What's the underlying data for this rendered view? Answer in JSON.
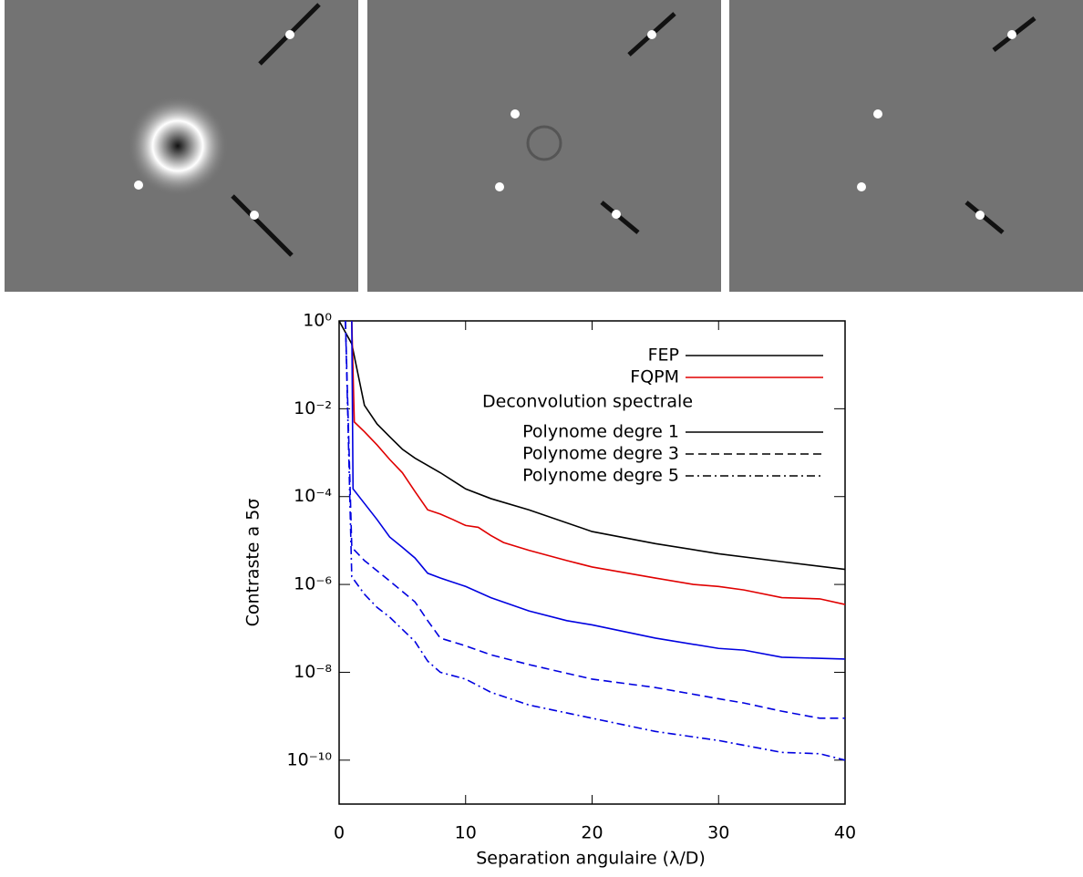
{
  "chart_data": {
    "type": "line",
    "y_label": "Contraste a 5σ",
    "x_label": "Separation angulaire (λ/D)",
    "xlim": [
      0,
      40
    ],
    "xticks": [
      0,
      10,
      20,
      30,
      40
    ],
    "ylim": [
      1e-11,
      1
    ],
    "log_y": true,
    "yticks": [
      {
        "value": 1,
        "label": "10⁰"
      },
      {
        "value": 0.01,
        "label": "10⁻²"
      },
      {
        "value": 0.0001,
        "label": "10⁻⁴"
      },
      {
        "value": 1e-06,
        "label": "10⁻⁶"
      },
      {
        "value": 1e-08,
        "label": "10⁻⁸"
      },
      {
        "value": 1e-10,
        "label": "10⁻¹⁰"
      }
    ],
    "legend_position": "upper right",
    "legend_heading": "Deconvolution spectrale",
    "series": [
      {
        "name": "FEP",
        "color": "#000000",
        "legend_color": "#000000",
        "dash": "solid",
        "x": [
          0,
          1,
          2,
          3,
          4,
          5,
          6,
          8,
          10,
          12,
          15,
          20,
          25,
          30,
          35,
          40
        ],
        "values": [
          1,
          0.3,
          0.012,
          0.0045,
          0.0023,
          0.0012,
          0.00075,
          0.00035,
          0.00015,
          9e-05,
          5e-05,
          1.6e-05,
          8.5e-06,
          5e-06,
          3.3e-06,
          2.2e-06
        ]
      },
      {
        "name": "FQPM",
        "color": "#e00000",
        "legend_color": "#e00000",
        "dash": "solid",
        "x": [
          1,
          1.2,
          2,
          3,
          4,
          5,
          6,
          7,
          8,
          9,
          10,
          11,
          12,
          13,
          15,
          18,
          20,
          25,
          28,
          30,
          32,
          35,
          38,
          40
        ],
        "values": [
          1,
          0.005,
          0.003,
          0.0015,
          0.0007,
          0.00035,
          0.00013,
          5e-05,
          4e-05,
          3e-05,
          2.2e-05,
          2e-05,
          1.3e-05,
          9e-06,
          6e-06,
          3.5e-06,
          2.5e-06,
          1.4e-06,
          1e-06,
          9e-07,
          7.5e-07,
          5e-07,
          4.7e-07,
          3.5e-07
        ]
      },
      {
        "name": "Polynome degre 1",
        "color": "#0000e0",
        "legend_color": "#000000",
        "dash": "solid",
        "x": [
          1,
          1.1,
          2,
          3,
          4,
          5,
          6,
          7,
          8,
          10,
          12,
          15,
          18,
          20,
          25,
          30,
          32,
          35,
          40
        ],
        "values": [
          1,
          0.00015,
          7e-05,
          3e-05,
          1.2e-05,
          7e-06,
          4e-06,
          1.8e-06,
          1.4e-06,
          9e-07,
          5e-07,
          2.5e-07,
          1.5e-07,
          1.2e-07,
          6e-08,
          3.5e-08,
          3.2e-08,
          2.2e-08,
          2e-08
        ]
      },
      {
        "name": "Polynome degre 3",
        "color": "#0000e0",
        "legend_color": "#000000",
        "dash": "dashed",
        "x": [
          0.5,
          1,
          2,
          4,
          6,
          7,
          8,
          10,
          12,
          15,
          20,
          25,
          30,
          32,
          35,
          38,
          40
        ],
        "values": [
          1,
          7e-06,
          3.5e-06,
          1.2e-06,
          4e-07,
          1.5e-07,
          6e-08,
          4e-08,
          2.5e-08,
          1.5e-08,
          7e-09,
          4.5e-09,
          2.5e-09,
          2e-09,
          1.3e-09,
          9e-10,
          9e-10
        ]
      },
      {
        "name": "Polynome degre 5",
        "color": "#0000e0",
        "legend_color": "#000000",
        "dash": "dashdot",
        "x": [
          0.5,
          1,
          2,
          3,
          4,
          6,
          7,
          8,
          10,
          12,
          15,
          20,
          25,
          30,
          35,
          38,
          40
        ],
        "values": [
          1,
          1.5e-06,
          6e-07,
          3e-07,
          1.8e-07,
          5e-08,
          1.8e-08,
          1e-08,
          7e-09,
          3.5e-09,
          1.8e-09,
          9e-10,
          4.5e-10,
          2.8e-10,
          1.5e-10,
          1.4e-10,
          1e-10
        ]
      }
    ]
  }
}
